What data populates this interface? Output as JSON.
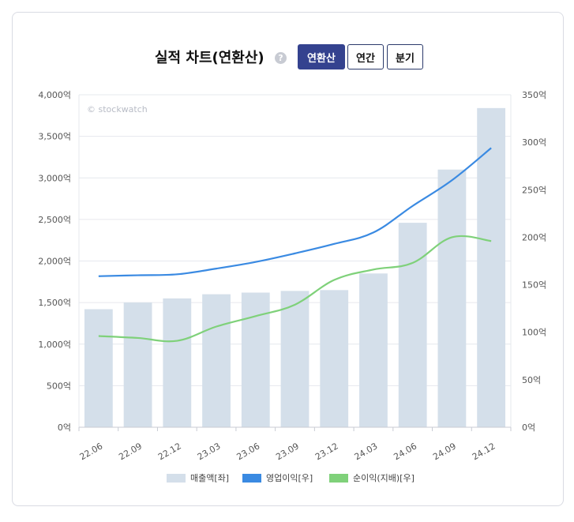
{
  "header": {
    "title": "실적 차트(연환산)",
    "help_icon": "question-circle-icon",
    "help_glyph": "?",
    "tabs": [
      {
        "label": "연환산",
        "active": true
      },
      {
        "label": "연간",
        "active": false
      },
      {
        "label": "분기",
        "active": false
      }
    ]
  },
  "chart_data": {
    "type": "bar",
    "watermark": "© stockwatch",
    "categories": [
      "22.06",
      "22.09",
      "22.12",
      "23.03",
      "23.06",
      "23.09",
      "23.12",
      "24.03",
      "24.06",
      "24.09",
      "24.12"
    ],
    "y_left": {
      "ylim": [
        0,
        4000
      ],
      "ticks": [
        0,
        500,
        1000,
        1500,
        2000,
        2500,
        3000,
        3500,
        4000
      ],
      "tick_labels": [
        "0억",
        "500억",
        "1,000억",
        "1,500억",
        "2,000억",
        "2,500억",
        "3,000억",
        "3,500억",
        "4,000억"
      ]
    },
    "y_right": {
      "ylim": [
        0,
        350
      ],
      "ticks": [
        0,
        50,
        100,
        150,
        200,
        250,
        300,
        350
      ],
      "tick_labels": [
        "0억",
        "50억",
        "100억",
        "150억",
        "200억",
        "250억",
        "300억",
        "350억"
      ]
    },
    "grid": true,
    "legend_position": "bottom-center",
    "series": [
      {
        "name": "매출액[좌]",
        "kind": "bar",
        "axis": "left",
        "color": "#d4dfea",
        "values": [
          1420,
          1500,
          1550,
          1600,
          1620,
          1640,
          1650,
          1850,
          2460,
          3100,
          3840
        ]
      },
      {
        "name": "영업이익[우]",
        "kind": "line",
        "axis": "right",
        "color": "#3a8ae2",
        "values": [
          159,
          160,
          161,
          167,
          174,
          183,
          193,
          205,
          233,
          260,
          294
        ]
      },
      {
        "name": "순이익(지배)[우]",
        "kind": "line",
        "axis": "right",
        "color": "#7fd17a",
        "values": [
          96,
          94,
          91,
          106,
          117,
          129,
          155,
          166,
          173,
          200,
          196
        ]
      }
    ]
  }
}
